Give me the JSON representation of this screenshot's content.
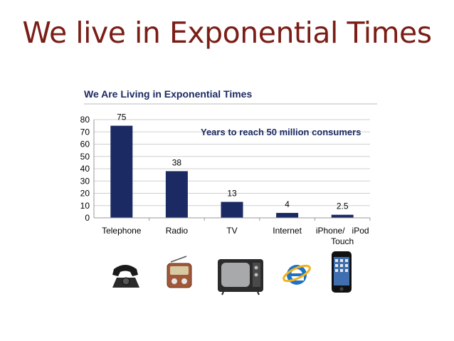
{
  "slide": {
    "title": "We live in Exponential Times"
  },
  "chart_data": {
    "type": "bar",
    "title": "We Are Living in Exponential Times",
    "annotation": "Years to reach 50 million consumers",
    "categories": [
      "Telephone",
      "Radio",
      "TV",
      "Internet",
      "iPhone/ iPod Touch"
    ],
    "category_lines": [
      [
        "Telephone"
      ],
      [
        "Radio"
      ],
      [
        "TV"
      ],
      [
        "Internet"
      ],
      [
        "iPhone/   iPod",
        "Touch"
      ]
    ],
    "values": [
      75,
      38,
      13,
      4,
      2.5
    ],
    "data_labels": [
      "75",
      "38",
      "13",
      "4",
      "2.5"
    ],
    "yticks": [
      0,
      10,
      20,
      30,
      40,
      50,
      60,
      70,
      80
    ],
    "ylim": [
      0,
      80
    ],
    "xlabel": "",
    "ylabel": "",
    "grid": true,
    "bar_color": "#1b2a63",
    "title_color": "#1b2a63"
  },
  "icons": [
    "telephone-icon",
    "radio-icon",
    "tv-icon",
    "internet-explorer-icon",
    "iphone-icon"
  ]
}
